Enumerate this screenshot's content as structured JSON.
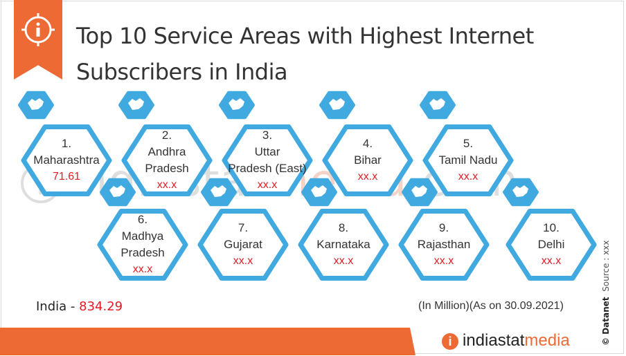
{
  "header": {
    "title_line1": "Top 10 Service Areas with Highest Internet",
    "title_line2": "Subscribers in India"
  },
  "watermark": {
    "prefix": "i",
    "part1": "indiastat",
    "part2": "media",
    "part3": ".com"
  },
  "chart_data": {
    "type": "table",
    "title": "Top 10 Service Areas with Highest Internet Subscribers in India",
    "unit": "(In Million)",
    "as_on": "(As on 30.09.2021)",
    "entries": [
      {
        "rank": "1.",
        "name_line1": "Maharashtra",
        "name_line2": "",
        "value": "71.61"
      },
      {
        "rank": "2.",
        "name_line1": "Andhra",
        "name_line2": "Pradesh",
        "value": "xx.x"
      },
      {
        "rank": "3.",
        "name_line1": "Uttar",
        "name_line2": "Pradesh (East)",
        "value": "xx.x"
      },
      {
        "rank": "4.",
        "name_line1": "Bihar",
        "name_line2": "",
        "value": "xx.x"
      },
      {
        "rank": "5.",
        "name_line1": "Tamil Nadu",
        "name_line2": "",
        "value": "xx.x"
      },
      {
        "rank": "6.",
        "name_line1": "Madhya",
        "name_line2": "Pradesh",
        "value": "xx.x"
      },
      {
        "rank": "7.",
        "name_line1": "Gujarat",
        "name_line2": "",
        "value": "xx.x"
      },
      {
        "rank": "8.",
        "name_line1": "Karnataka",
        "name_line2": "",
        "value": "xx.x"
      },
      {
        "rank": "9.",
        "name_line1": "Rajasthan",
        "name_line2": "",
        "value": "xx.x"
      },
      {
        "rank": "10.",
        "name_line1": "Delhi",
        "name_line2": "",
        "value": "xx.x"
      }
    ],
    "total_label": "India",
    "total_separator": "-",
    "total_value": "834.29"
  },
  "source": {
    "brand": "© Datanet",
    "source_text": "Source : xxx"
  },
  "footer": {
    "logo_icon": "i",
    "logo_part1": "indiastat",
    "logo_part2": "media"
  },
  "colors": {
    "hex_border": "#3fa9e0",
    "accent": "#ee6a35",
    "value": "#e31b23"
  }
}
